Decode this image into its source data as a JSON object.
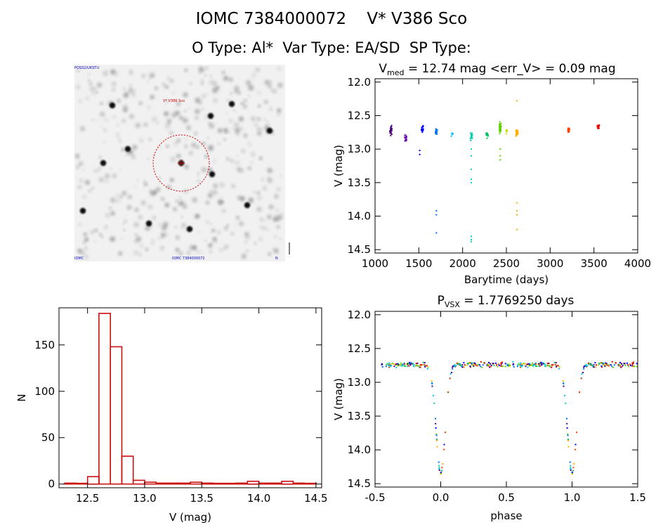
{
  "header": {
    "title": "IOMC 7384000072    V* V386 Sco",
    "subtitle": "O Type: Al*  Var Type: EA/SD  SP Type:"
  },
  "finder": {
    "label_top_left": "POSS2/UKSTU",
    "label_target": "V* V386 Sco",
    "label_bottom_left": "IOMC",
    "label_bottom_center": "IOMC 7384000072",
    "label_bottom_right": "N",
    "colors": {
      "circle": "#cc0000",
      "labels": "#0000cc"
    }
  },
  "chart_data": [
    {
      "id": "light-curve",
      "type": "scatter",
      "title_prefix": "V",
      "title_sub": "med",
      "title_rest": " = 12.74 mag <err_V> = 0.09 mag",
      "xlabel": "Barytime (days)",
      "ylabel": "V (mag)",
      "xlim": [
        1000,
        4000
      ],
      "ylim": [
        14.55,
        11.95
      ],
      "xticks": [
        1000,
        1500,
        2000,
        2500,
        3000,
        3500,
        4000
      ],
      "yticks": [
        "12.0",
        "12.5",
        "13.0",
        "13.5",
        "14.0",
        "14.5"
      ],
      "groups": [
        {
          "x": 1180,
          "n": 30,
          "mean": 12.72,
          "spread": 0.12,
          "color": "#4b0082"
        },
        {
          "x": 1350,
          "n": 14,
          "mean": 12.83,
          "spread": 0.08,
          "color": "#6a0dad"
        },
        {
          "x": 1540,
          "n": 18,
          "mean": 12.7,
          "spread": 0.13,
          "color": "#0000ff"
        },
        {
          "x": 1700,
          "n": 20,
          "mean": 12.73,
          "spread": 0.07,
          "color": "#0070ff"
        },
        {
          "x": 1880,
          "n": 5,
          "mean": 12.77,
          "spread": 0.06,
          "color": "#00bfff"
        },
        {
          "x": 2100,
          "n": 24,
          "mean": 12.8,
          "spread": 0.1,
          "color": "#00d0b0"
        },
        {
          "x": 2280,
          "n": 16,
          "mean": 12.78,
          "spread": 0.08,
          "color": "#00c060"
        },
        {
          "x": 2430,
          "n": 30,
          "mean": 12.68,
          "spread": 0.14,
          "color": "#60d000"
        },
        {
          "x": 2500,
          "n": 10,
          "mean": 12.73,
          "spread": 0.06,
          "color": "#c8e000"
        },
        {
          "x": 2620,
          "n": 40,
          "mean": 12.76,
          "spread": 0.08,
          "color": "#ffb000"
        },
        {
          "x": 3210,
          "n": 22,
          "mean": 12.72,
          "spread": 0.06,
          "color": "#ff4000"
        },
        {
          "x": 3550,
          "n": 12,
          "mean": 12.66,
          "spread": 0.05,
          "color": "#e00000"
        }
      ],
      "extra_points": [
        {
          "x": 1700,
          "y": 13.92,
          "color": "#0070ff"
        },
        {
          "x": 1700,
          "y": 13.98,
          "color": "#0070ff"
        },
        {
          "x": 1700,
          "y": 14.25,
          "color": "#0070ff"
        },
        {
          "x": 1510,
          "y": 13.02,
          "color": "#0000ff"
        },
        {
          "x": 1510,
          "y": 13.08,
          "color": "#0000ff"
        },
        {
          "x": 2100,
          "y": 13.0,
          "color": "#00d0b0"
        },
        {
          "x": 2100,
          "y": 13.1,
          "color": "#00d0b0"
        },
        {
          "x": 2100,
          "y": 13.3,
          "color": "#00d0b0"
        },
        {
          "x": 2100,
          "y": 13.45,
          "color": "#00d0b0"
        },
        {
          "x": 2100,
          "y": 13.5,
          "color": "#00d0b0"
        },
        {
          "x": 2100,
          "y": 14.3,
          "color": "#00d0b0"
        },
        {
          "x": 2100,
          "y": 14.35,
          "color": "#00d0b0"
        },
        {
          "x": 2100,
          "y": 14.38,
          "color": "#00d0b0"
        },
        {
          "x": 2430,
          "y": 13.0,
          "color": "#60d000"
        },
        {
          "x": 2430,
          "y": 13.1,
          "color": "#60d000"
        },
        {
          "x": 2430,
          "y": 13.16,
          "color": "#60d000"
        },
        {
          "x": 2620,
          "y": 12.28,
          "color": "#ffb000"
        },
        {
          "x": 2620,
          "y": 13.8,
          "color": "#ffb000"
        },
        {
          "x": 2620,
          "y": 13.92,
          "color": "#ffb000"
        },
        {
          "x": 2620,
          "y": 13.98,
          "color": "#ffb000"
        },
        {
          "x": 2620,
          "y": 14.2,
          "color": "#ffb000"
        }
      ]
    },
    {
      "id": "histogram",
      "type": "bar",
      "xlabel": "V (mag)",
      "ylabel": "N",
      "xlim": [
        12.25,
        14.55
      ],
      "ylim": [
        -4,
        190
      ],
      "xticks": [
        "12.5",
        "13.0",
        "13.5",
        "14.0",
        "14.5"
      ],
      "xtick_values": [
        12.5,
        13.0,
        13.5,
        14.0,
        14.5
      ],
      "yticks": [
        0,
        50,
        100,
        150
      ],
      "bin_width": 0.1,
      "bin_starts": [
        12.3,
        12.4,
        12.5,
        12.6,
        12.7,
        12.8,
        12.9,
        13.0,
        13.1,
        13.2,
        13.3,
        13.4,
        13.5,
        13.6,
        13.7,
        13.8,
        13.9,
        14.0,
        14.1,
        14.2,
        14.3,
        14.4
      ],
      "values": [
        1,
        0,
        8,
        184,
        148,
        30,
        4,
        2,
        1,
        1,
        1,
        2,
        1,
        0,
        0,
        1,
        3,
        1,
        1,
        3,
        1,
        0
      ],
      "color": "#cc1111"
    },
    {
      "id": "phased",
      "type": "scatter",
      "title_prefix": "P",
      "title_sub": "VSX",
      "title_rest": " = 1.7769250 days",
      "xlabel": "phase",
      "ylabel": "V (mag)",
      "xlim": [
        -0.5,
        1.5
      ],
      "ylim": [
        14.55,
        11.95
      ],
      "xticks": [
        "-0.5",
        "0.0",
        "0.5",
        "1.0",
        "1.5"
      ],
      "xtick_values": [
        -0.5,
        0.0,
        0.5,
        1.0,
        1.5
      ],
      "yticks": [
        "12.0",
        "12.5",
        "13.0",
        "13.5",
        "14.0",
        "14.5"
      ],
      "period_days": 1.776925,
      "palette": [
        "#4b0082",
        "#0000ff",
        "#0070ff",
        "#00bfff",
        "#00d0b0",
        "#00c060",
        "#60d000",
        "#c8e000",
        "#ffb000",
        "#ff4000",
        "#e00000"
      ],
      "eclipse_phase": 0.0,
      "eclipse_depth_mag": 1.6,
      "out_of_eclipse_mag": 12.74
    }
  ]
}
